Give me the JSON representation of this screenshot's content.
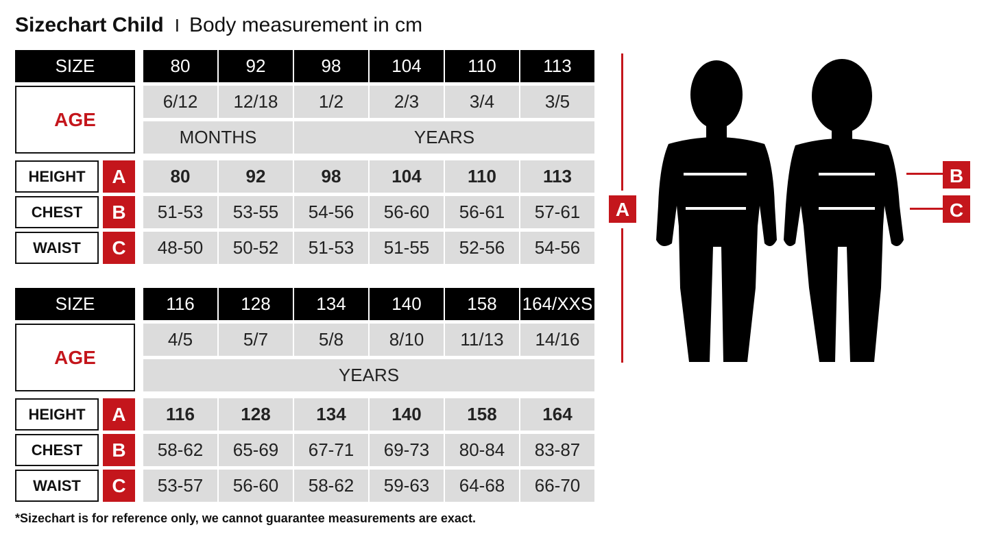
{
  "title": {
    "main": "Sizechart Child",
    "separator": "I",
    "sub": "Body measurement in cm"
  },
  "tables": [
    {
      "size_label": "SIZE",
      "age_label": "AGE",
      "sizes": [
        "80",
        "92",
        "98",
        "104",
        "110",
        "113"
      ],
      "ages": [
        "6/12",
        "12/18",
        "1/2",
        "2/3",
        "3/4",
        "3/5"
      ],
      "age_units": [
        {
          "label": "MONTHS",
          "span": 2
        },
        {
          "label": "YEARS",
          "span": 4
        }
      ],
      "rows": [
        {
          "label": "HEIGHT",
          "letter": "A",
          "values": [
            "80",
            "92",
            "98",
            "104",
            "110",
            "113"
          ]
        },
        {
          "label": "CHEST",
          "letter": "B",
          "values": [
            "51-53",
            "53-55",
            "54-56",
            "56-60",
            "56-61",
            "57-61"
          ]
        },
        {
          "label": "WAIST",
          "letter": "C",
          "values": [
            "48-50",
            "50-52",
            "51-53",
            "51-55",
            "52-56",
            "54-56"
          ]
        }
      ]
    },
    {
      "size_label": "SIZE",
      "age_label": "AGE",
      "sizes": [
        "116",
        "128",
        "134",
        "140",
        "158",
        "164/XXS"
      ],
      "ages": [
        "4/5",
        "5/7",
        "5/8",
        "8/10",
        "11/13",
        "14/16"
      ],
      "age_units": [
        {
          "label": "YEARS",
          "span": 6
        }
      ],
      "rows": [
        {
          "label": "HEIGHT",
          "letter": "A",
          "values": [
            "116",
            "128",
            "134",
            "140",
            "158",
            "164"
          ]
        },
        {
          "label": "CHEST",
          "letter": "B",
          "values": [
            "58-62",
            "65-69",
            "67-71",
            "69-73",
            "80-84",
            "83-87"
          ]
        },
        {
          "label": "WAIST",
          "letter": "C",
          "values": [
            "53-57",
            "56-60",
            "58-62",
            "59-63",
            "64-68",
            "66-70"
          ]
        }
      ]
    }
  ],
  "figure": {
    "height_marker": "A",
    "chest_marker": "B",
    "waist_marker": "C"
  },
  "footnote": "*Sizechart is for reference only, we cannot guarantee measurements are exact.",
  "colors": {
    "accent": "#c4161c",
    "header": "#000000",
    "cell": "#dcdcdc"
  }
}
